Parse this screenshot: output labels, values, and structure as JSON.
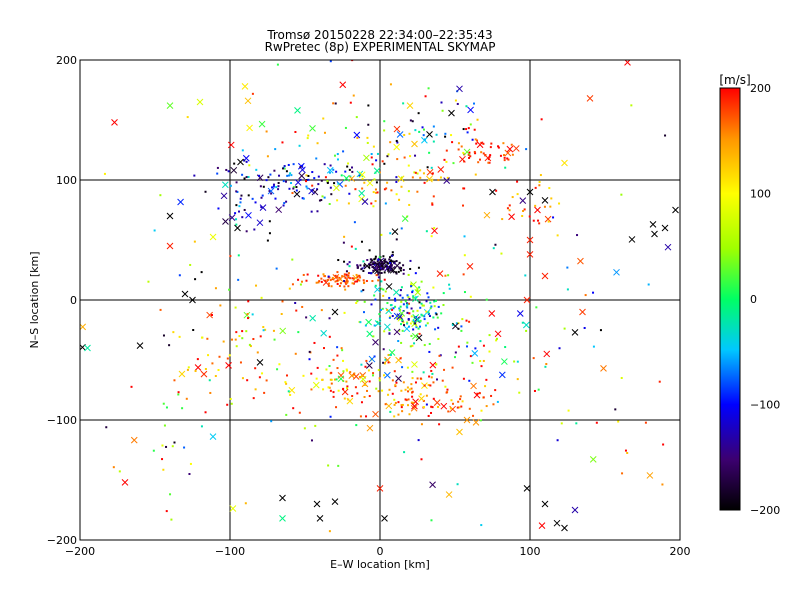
{
  "chart_data": {
    "type": "scatter",
    "title": "Tromsø 20150228 22:34:00–22:35:43",
    "subtitle": "RwPretec (8p) EXPERIMENTAL SKYMAP",
    "xlabel": "E–W location [km]",
    "ylabel": "N–S location [km]",
    "xlim": [
      -200,
      200
    ],
    "ylim": [
      -200,
      200
    ],
    "xticks": [
      "−200",
      "−100",
      "0",
      "100",
      "200"
    ],
    "yticks": [
      "−200",
      "−100",
      "0",
      "100",
      "200"
    ],
    "grid": true,
    "colorbar": {
      "label": "[m/s]",
      "range": [
        -200,
        200
      ],
      "ticks": [
        "−200",
        "−100",
        "0",
        "100",
        "200"
      ],
      "colormap": [
        "#000000",
        "#3c0070",
        "#0000ff",
        "#00c8ff",
        "#00ff64",
        "#a0ff00",
        "#ffff00",
        "#ff9600",
        "#ff0000"
      ],
      "placement": "right"
    },
    "markers": {
      "detection": "dot",
      "meteor": "x"
    },
    "clusters": [
      {
        "x": 0,
        "y": 29,
        "sx": 8,
        "sy": 4,
        "n": 140,
        "v": -175,
        "sv": 30
      },
      {
        "x": -25,
        "y": 17,
        "sx": 12,
        "sy": 3,
        "n": 80,
        "v": 175,
        "sv": 20
      },
      {
        "x": 18,
        "y": -10,
        "sx": 12,
        "sy": 10,
        "n": 140,
        "v": -20,
        "sv": 70
      },
      {
        "x": 30,
        "y": -80,
        "sx": 25,
        "sy": 12,
        "n": 110,
        "v": 160,
        "sv": 40
      },
      {
        "x": -25,
        "y": -65,
        "sx": 20,
        "sy": 12,
        "n": 80,
        "v": 140,
        "sv": 60
      },
      {
        "x": 72,
        "y": 122,
        "sx": 12,
        "sy": 6,
        "n": 50,
        "v": 190,
        "sv": 20
      },
      {
        "x": -55,
        "y": 100,
        "sx": 30,
        "sy": 12,
        "n": 110,
        "v": -120,
        "sv": 60
      },
      {
        "x": 10,
        "y": 100,
        "sx": 25,
        "sy": 15,
        "n": 70,
        "v": 130,
        "sv": 60
      },
      {
        "x": -85,
        "y": 80,
        "sx": 12,
        "sy": 12,
        "n": 40,
        "v": -110,
        "sv": 40
      },
      {
        "x": 100,
        "y": 80,
        "sx": 12,
        "sy": 10,
        "n": 30,
        "v": 160,
        "sv": 40
      },
      {
        "x": 40,
        "y": -40,
        "sx": 30,
        "sy": 20,
        "n": 80,
        "v": 60,
        "sv": 130
      },
      {
        "x": -100,
        "y": -40,
        "sx": 25,
        "sy": 25,
        "n": 70,
        "v": 150,
        "sv": 60
      },
      {
        "x": 30,
        "y": 150,
        "sx": 30,
        "sy": 15,
        "n": 40,
        "v": -20,
        "sv": 100
      },
      {
        "x": -30,
        "y": 130,
        "sx": 35,
        "sy": 25,
        "n": 40,
        "v": 60,
        "sv": 110
      },
      {
        "x": 0,
        "y": 0,
        "sx": 90,
        "sy": 90,
        "n": 220,
        "v": 0,
        "sv": 140
      },
      {
        "x": -140,
        "y": -110,
        "sx": 25,
        "sy": 30,
        "n": 25,
        "v": 20,
        "sv": 130
      },
      {
        "x": 150,
        "y": -130,
        "sx": 30,
        "sy": 35,
        "n": 15,
        "v": 140,
        "sv": 60
      }
    ],
    "x_markers": [
      {
        "x": 165,
        "y": 198,
        "v": 200
      },
      {
        "x": -177,
        "y": 148,
        "v": 200
      },
      {
        "x": -140,
        "y": 162,
        "v": 30
      },
      {
        "x": -120,
        "y": 165,
        "v": 80
      },
      {
        "x": -90,
        "y": 178,
        "v": 110
      },
      {
        "x": -88,
        "y": 166,
        "v": 130
      },
      {
        "x": 53,
        "y": 176,
        "v": -130
      },
      {
        "x": 140,
        "y": 168,
        "v": 180
      },
      {
        "x": -55,
        "y": 158,
        "v": -10
      },
      {
        "x": 20,
        "y": 162,
        "v": 120
      },
      {
        "x": -93,
        "y": 115,
        "v": -200
      },
      {
        "x": -140,
        "y": 70,
        "v": -200
      },
      {
        "x": -140,
        "y": 45,
        "v": 190
      },
      {
        "x": 190,
        "y": 60,
        "v": -200
      },
      {
        "x": 197,
        "y": 75,
        "v": -200
      },
      {
        "x": 183,
        "y": 55,
        "v": -200
      },
      {
        "x": 192,
        "y": 44,
        "v": -130
      },
      {
        "x": 182,
        "y": 63,
        "v": -200
      },
      {
        "x": 135,
        "y": -10,
        "v": 180
      },
      {
        "x": 149,
        "y": -57,
        "v": 160
      },
      {
        "x": 130,
        "y": -27,
        "v": -200
      },
      {
        "x": -195,
        "y": -40,
        "v": -20
      },
      {
        "x": -160,
        "y": -38,
        "v": -200
      },
      {
        "x": -130,
        "y": 5,
        "v": -200
      },
      {
        "x": -125,
        "y": 0,
        "v": -200
      },
      {
        "x": -170,
        "y": -152,
        "v": 200
      },
      {
        "x": -65,
        "y": -182,
        "v": -10
      },
      {
        "x": -65,
        "y": -165,
        "v": -200
      },
      {
        "x": -40,
        "y": -182,
        "v": -200
      },
      {
        "x": -42,
        "y": -170,
        "v": -200
      },
      {
        "x": -30,
        "y": -168,
        "v": -200
      },
      {
        "x": 3,
        "y": -182,
        "v": -200
      },
      {
        "x": 0,
        "y": -157,
        "v": 190
      },
      {
        "x": 98,
        "y": -157,
        "v": -200
      },
      {
        "x": 108,
        "y": -188,
        "v": 200
      },
      {
        "x": 118,
        "y": -186,
        "v": -200
      },
      {
        "x": 123,
        "y": -190,
        "v": -200
      },
      {
        "x": 130,
        "y": -175,
        "v": -130
      },
      {
        "x": 110,
        "y": -170,
        "v": -200
      },
      {
        "x": 64,
        "y": -102,
        "v": 150
      },
      {
        "x": 53,
        "y": -110,
        "v": 130
      },
      {
        "x": 58,
        "y": -100,
        "v": 150
      },
      {
        "x": 100,
        "y": 50,
        "v": 190
      },
      {
        "x": 105,
        "y": 75,
        "v": 200
      },
      {
        "x": 100,
        "y": 90,
        "v": -200
      },
      {
        "x": 110,
        "y": 83,
        "v": -200
      },
      {
        "x": -95,
        "y": 60,
        "v": -200
      },
      {
        "x": -78,
        "y": 77,
        "v": -120
      },
      {
        "x": 75,
        "y": 90,
        "v": -200
      },
      {
        "x": 60,
        "y": 28,
        "v": 190
      },
      {
        "x": 40,
        "y": 22,
        "v": 190
      },
      {
        "x": 100,
        "y": 38,
        "v": 190
      },
      {
        "x": 110,
        "y": 20,
        "v": 190
      },
      {
        "x": 98,
        "y": 0,
        "v": 190
      },
      {
        "x": 10,
        "y": 57,
        "v": -200
      },
      {
        "x": -10,
        "y": 82,
        "v": -130
      },
      {
        "x": 23,
        "y": 130,
        "v": 130
      },
      {
        "x": 33,
        "y": 138,
        "v": -200
      },
      {
        "x": -45,
        "y": 143,
        "v": 20
      },
      {
        "x": -30,
        "y": -10,
        "v": -200
      },
      {
        "x": 5,
        "y": -50,
        "v": 150
      },
      {
        "x": -80,
        "y": -52,
        "v": -200
      }
    ]
  }
}
